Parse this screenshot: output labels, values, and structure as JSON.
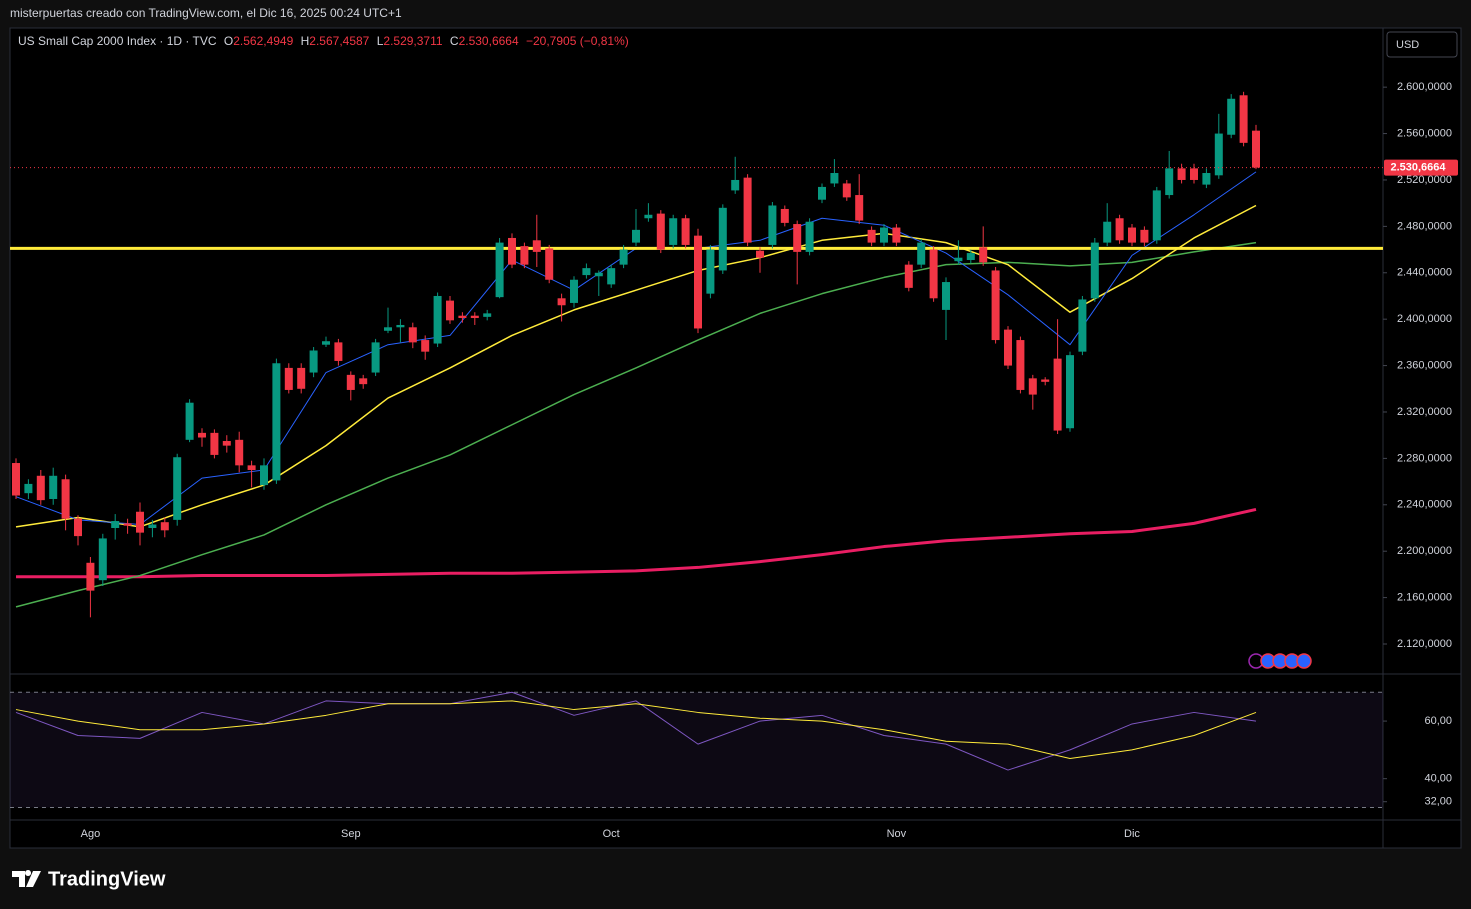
{
  "header": {
    "credit": "misterpuertas creado con TradingView.com, el Dic 16, 2025 00:24 UTC+1",
    "symbol": "US Small Cap 2000 Index · 1D · TVC",
    "o_label": "O",
    "o": "2.562,4949",
    "h_label": "H",
    "h": "2.567,4587",
    "l_label": "L",
    "l": "2.529,3711",
    "c_label": "C",
    "c": "2.530,6664",
    "change": "−20,7905 (−0,81%)",
    "currency": "USD",
    "logo": "TradingView"
  },
  "chart_data": [
    {
      "type": "candlestick",
      "categories": [
        null,
        null,
        null,
        null,
        null,
        null,
        "Ago",
        null,
        null,
        null,
        null,
        null,
        null,
        null,
        null,
        null,
        null,
        null,
        null,
        null,
        null,
        null,
        null,
        null,
        null,
        null,
        null,
        "Sep",
        null,
        null,
        null,
        null,
        null,
        null,
        null,
        null,
        null,
        null,
        null,
        null,
        null,
        null,
        null,
        null,
        null,
        null,
        null,
        null,
        "Oct",
        null,
        null,
        null,
        null,
        null,
        null,
        null,
        null,
        null,
        null,
        null,
        null,
        null,
        null,
        null,
        null,
        null,
        null,
        null,
        null,
        null,
        null,
        "Nov",
        null,
        null,
        null,
        null,
        null,
        null,
        null,
        null,
        null,
        null,
        null,
        null,
        null,
        null,
        null,
        null,
        null,
        null,
        "Dic",
        null,
        null,
        null,
        null,
        null,
        null,
        null,
        null,
        null,
        null
      ],
      "open": [
        2276,
        2250,
        2265,
        2245,
        2262,
        2228,
        2190,
        2175,
        2220,
        2224,
        2234,
        2220,
        2225,
        2227,
        2296,
        2302,
        2302,
        2295,
        2296,
        2274,
        2257,
        2261,
        2358,
        2358,
        2354,
        2378,
        2380,
        2352,
        2349,
        2354,
        2390,
        2393,
        2393,
        2382,
        2379,
        2416,
        2403,
        2403,
        2402,
        2419,
        2470,
        2463,
        2468,
        2461,
        2418,
        2414,
        2438,
        2437,
        2430,
        2447,
        2466,
        2487,
        2491,
        2464,
        2487,
        2472,
        2422,
        2442,
        2511,
        2522,
        2459,
        2464,
        2495,
        2482,
        2458,
        2503,
        2517,
        2517,
        2507,
        2477,
        2466,
        2479,
        2447,
        2447,
        2460,
        2408,
        2450,
        2451,
        2462,
        2442,
        2391,
        2382,
        2349,
        2348,
        2366,
        2306,
        2372,
        2418,
        2466,
        2487,
        2479,
        2477,
        2468,
        2507,
        2530,
        2530,
        2516,
        2524,
        2559,
        2593,
        2562.4949
      ],
      "high": [
        2280,
        2262,
        2270,
        2272,
        2266,
        2231,
        2195,
        2215,
        2232,
        2228,
        2242,
        2227,
        2229,
        2284,
        2331,
        2306,
        2305,
        2300,
        2303,
        2278,
        2280,
        2366,
        2362,
        2362,
        2376,
        2385,
        2383,
        2355,
        2352,
        2383,
        2410,
        2400,
        2397,
        2386,
        2423,
        2420,
        2406,
        2406,
        2408,
        2470,
        2474,
        2466,
        2490,
        2464,
        2422,
        2437,
        2448,
        2442,
        2447,
        2464,
        2495,
        2500,
        2494,
        2490,
        2490,
        2478,
        2464,
        2499,
        2540,
        2525,
        2462,
        2501,
        2498,
        2485,
        2487,
        2517,
        2538,
        2520,
        2525,
        2480,
        2482,
        2482,
        2450,
        2469,
        2463,
        2436,
        2468,
        2460,
        2480,
        2445,
        2394,
        2385,
        2352,
        2350,
        2400,
        2372,
        2420,
        2470,
        2500,
        2490,
        2482,
        2480,
        2514,
        2545,
        2534,
        2534,
        2530,
        2577,
        2594,
        2596,
        2567.4587
      ],
      "low": [
        2245,
        2245,
        2240,
        2240,
        2218,
        2205,
        2143,
        2170,
        2210,
        2215,
        2205,
        2212,
        2212,
        2222,
        2294,
        2290,
        2280,
        2285,
        2268,
        2255,
        2253,
        2258,
        2336,
        2336,
        2350,
        2376,
        2360,
        2330,
        2340,
        2351,
        2388,
        2380,
        2375,
        2365,
        2376,
        2396,
        2397,
        2395,
        2399,
        2418,
        2444,
        2444,
        2445,
        2431,
        2398,
        2410,
        2435,
        2420,
        2427,
        2444,
        2463,
        2484,
        2457,
        2461,
        2461,
        2388,
        2418,
        2439,
        2508,
        2463,
        2440,
        2461,
        2480,
        2430,
        2455,
        2500,
        2514,
        2502,
        2482,
        2463,
        2463,
        2463,
        2424,
        2444,
        2415,
        2382,
        2447,
        2448,
        2446,
        2379,
        2357,
        2336,
        2322,
        2343,
        2301,
        2303,
        2369,
        2415,
        2463,
        2465,
        2463,
        2463,
        2465,
        2504,
        2517,
        2517,
        2513,
        2521,
        2556,
        2549,
        2529.3711
      ],
      "close": [
        2248,
        2258,
        2244,
        2265,
        2228,
        2213,
        2166,
        2211,
        2226,
        2222,
        2216,
        2223,
        2218,
        2281,
        2328,
        2298,
        2283,
        2291,
        2274,
        2270,
        2274,
        2362,
        2339,
        2340,
        2373,
        2381,
        2364,
        2339,
        2344,
        2380,
        2393,
        2395,
        2380,
        2372,
        2420,
        2399,
        2401,
        2401,
        2405,
        2466,
        2447,
        2447,
        2458,
        2434,
        2412,
        2434,
        2444,
        2440,
        2444,
        2460,
        2477,
        2490,
        2460,
        2487,
        2464,
        2392,
        2460,
        2496,
        2520,
        2466,
        2453,
        2498,
        2483,
        2458,
        2484,
        2514,
        2526,
        2505,
        2485,
        2466,
        2479,
        2466,
        2427,
        2466,
        2418,
        2432,
        2453,
        2457,
        2449,
        2382,
        2360,
        2339,
        2335,
        2346,
        2304,
        2369,
        2417,
        2466,
        2484,
        2468,
        2466,
        2466,
        2511,
        2530,
        2520,
        2520,
        2526,
        2560,
        2590,
        2552,
        2530.6664
      ],
      "up_color": "#089981",
      "down_color": "#f23645",
      "price_label": "2.530,6664",
      "hline": 2461,
      "hline_color": "#ffeb3b",
      "ylim": [
        2095,
        2651
      ],
      "yticks": [
        {
          "value": 2600,
          "label": "2.600,0000"
        },
        {
          "value": 2560,
          "label": "2.560,0000"
        },
        {
          "value": 2520,
          "label": "2.520,0000"
        },
        {
          "value": 2480,
          "label": "2.480,0000"
        },
        {
          "value": 2440,
          "label": "2.440,0000"
        },
        {
          "value": 2400,
          "label": "2.400,0000"
        },
        {
          "value": 2360,
          "label": "2.360,0000"
        },
        {
          "value": 2320,
          "label": "2.320,0000"
        },
        {
          "value": 2280,
          "label": "2.280,0000"
        },
        {
          "value": 2240,
          "label": "2.240,0000"
        },
        {
          "value": 2200,
          "label": "2.200,0000"
        },
        {
          "value": 2160,
          "label": "2.160,0000"
        },
        {
          "value": 2120,
          "label": "2.120,0000"
        }
      ],
      "series": [
        {
          "color": "#e91e63",
          "width": 3,
          "x": [
            0,
            5,
            10,
            15,
            20,
            25,
            30,
            35,
            40,
            45,
            50,
            55,
            60,
            65,
            70,
            75,
            80,
            85,
            90,
            95,
            100
          ],
          "values": [
            2178,
            2178,
            2178,
            2179,
            2179,
            2179,
            2180,
            2181,
            2181,
            2182,
            2183,
            2186,
            2191,
            2197,
            2204,
            2209,
            2212,
            2215,
            2217,
            2224,
            2236
          ]
        },
        {
          "color": "#4caf50",
          "width": 1.5,
          "x": [
            0,
            5,
            10,
            15,
            20,
            25,
            30,
            35,
            40,
            45,
            50,
            55,
            60,
            65,
            70,
            75,
            80,
            85,
            90,
            95,
            100
          ],
          "values": [
            2152,
            2166,
            2179,
            2197,
            2214,
            2240,
            2263,
            2283,
            2309,
            2335,
            2358,
            2382,
            2405,
            2422,
            2436,
            2447,
            2449,
            2446,
            2449,
            2458,
            2466
          ]
        },
        {
          "color": "#ffeb3b",
          "width": 1.5,
          "x": [
            0,
            5,
            10,
            15,
            20,
            25,
            30,
            35,
            40,
            45,
            50,
            55,
            60,
            65,
            70,
            75,
            80,
            85,
            90,
            95,
            100
          ],
          "values": [
            2221,
            2229,
            2221,
            2240,
            2257,
            2291,
            2332,
            2358,
            2386,
            2408,
            2425,
            2442,
            2453,
            2468,
            2474,
            2466,
            2447,
            2406,
            2435,
            2470,
            2498
          ]
        },
        {
          "color": "#2962ff",
          "width": 1,
          "x": [
            0,
            5,
            10,
            15,
            20,
            25,
            30,
            35,
            40,
            45,
            50,
            55,
            60,
            65,
            70,
            75,
            80,
            85,
            90,
            95,
            100
          ],
          "values": [
            2247,
            2227,
            2223,
            2263,
            2270,
            2354,
            2378,
            2386,
            2451,
            2425,
            2461,
            2461,
            2468,
            2487,
            2481,
            2457,
            2421,
            2378,
            2455,
            2490,
            2527
          ]
        }
      ]
    },
    {
      "type": "line",
      "ylim": [
        26,
        76
      ],
      "bands": [
        70,
        30
      ],
      "yticks": [
        {
          "value": 60,
          "label": "60,00"
        },
        {
          "value": 40,
          "label": "40,00"
        },
        {
          "value": 32,
          "label": "32,00"
        }
      ],
      "series": [
        {
          "color": "#7e57c2",
          "x": [
            0,
            5,
            10,
            15,
            20,
            25,
            30,
            35,
            40,
            45,
            50,
            55,
            60,
            65,
            70,
            75,
            80,
            85,
            90,
            95,
            100
          ],
          "values": [
            63,
            55,
            54,
            63,
            59,
            67,
            66,
            66,
            70,
            62,
            67,
            52,
            60,
            62,
            55,
            52,
            43,
            50,
            59,
            63,
            60
          ]
        },
        {
          "color": "#ffeb3b",
          "x": [
            0,
            5,
            10,
            15,
            20,
            25,
            30,
            35,
            40,
            45,
            50,
            55,
            60,
            65,
            70,
            75,
            80,
            85,
            90,
            95,
            100
          ],
          "values": [
            64,
            60,
            57,
            57,
            59,
            62,
            66,
            66,
            67,
            64,
            66,
            63,
            61,
            60,
            57,
            53,
            52,
            47,
            50,
            55,
            63
          ]
        }
      ]
    }
  ]
}
